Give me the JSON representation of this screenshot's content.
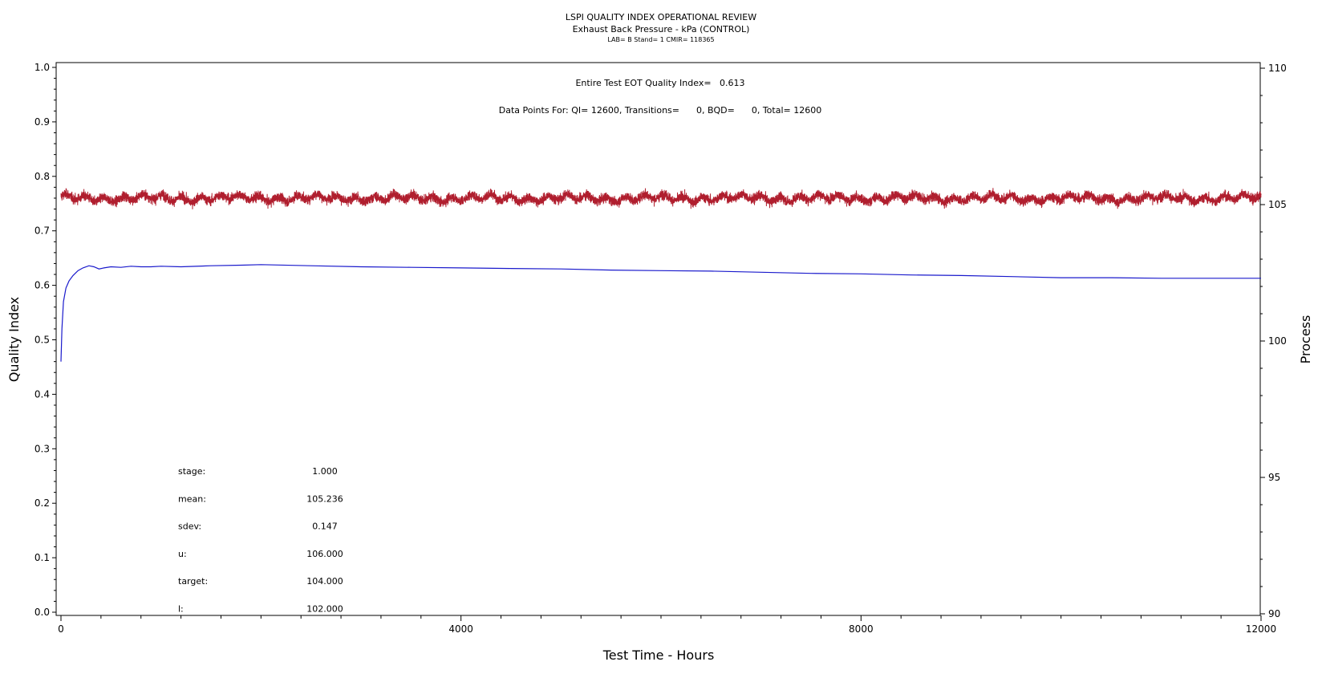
{
  "chart_data": {
    "type": "line",
    "title": "LSPI QUALITY INDEX OPERATIONAL REVIEW",
    "subtitle": "Exhaust Back Pressure - kPa (CONTROL)",
    "info_line": "LAB= B Stand= 1 CMIR= 118365",
    "annotation_qi": "Entire Test EOT Quality Index=   0.613",
    "annotation_points": "Data Points For: QI= 12600, Transitions=      0, BQD=      0, Total= 12600",
    "xlabel": "Test Time - Hours",
    "ylabel_left": "Quality Index",
    "ylabel_right": "Process",
    "xlim": [
      0,
      12000
    ],
    "ylim_left": [
      0,
      1
    ],
    "ylim_right": [
      90,
      110
    ],
    "x_ticks": [
      "0",
      "4000",
      "8000",
      "12000"
    ],
    "y_left_ticks": [
      "0.0",
      "0.1",
      "0.2",
      "0.3",
      "0.4",
      "0.5",
      "0.6",
      "0.7",
      "0.8",
      "0.9",
      "1.0"
    ],
    "y_right_ticks": [
      "90",
      "95",
      "100",
      "105",
      "110"
    ],
    "grid": false,
    "stats": [
      {
        "label": "stage:",
        "value": "1.000"
      },
      {
        "label": "mean:",
        "value": "105.236"
      },
      {
        "label": "sdev:",
        "value": "0.147"
      },
      {
        "label": "u:",
        "value": "106.000"
      },
      {
        "label": "target:",
        "value": "104.000"
      },
      {
        "label": "l:",
        "value": "102.000"
      }
    ],
    "series": [
      {
        "axis": "right",
        "color": "#b01e2e",
        "mean": 105.236,
        "sdev": 0.147,
        "x_range": [
          0,
          12000
        ],
        "point_count": 12600
      },
      {
        "axis": "left",
        "color": "#1a1acc",
        "x": [
          0,
          10,
          25,
          50,
          80,
          120,
          170,
          220,
          280,
          330,
          380,
          430,
          500,
          600,
          700,
          800,
          900,
          1000,
          1200,
          1500,
          1800,
          2000,
          2500,
          3000,
          3500,
          4000,
          4500,
          5000,
          5500,
          6000,
          6500,
          7000,
          7500,
          8000,
          8500,
          9000,
          9500,
          10000,
          10500,
          11000,
          11500,
          12000
        ],
        "y": [
          0.46,
          0.52,
          0.57,
          0.595,
          0.608,
          0.618,
          0.627,
          0.632,
          0.636,
          0.634,
          0.63,
          0.632,
          0.634,
          0.633,
          0.635,
          0.634,
          0.634,
          0.635,
          0.634,
          0.636,
          0.637,
          0.638,
          0.636,
          0.634,
          0.633,
          0.632,
          0.631,
          0.63,
          0.628,
          0.627,
          0.626,
          0.624,
          0.622,
          0.621,
          0.619,
          0.618,
          0.616,
          0.614,
          0.614,
          0.613,
          0.613,
          0.613
        ]
      }
    ]
  }
}
